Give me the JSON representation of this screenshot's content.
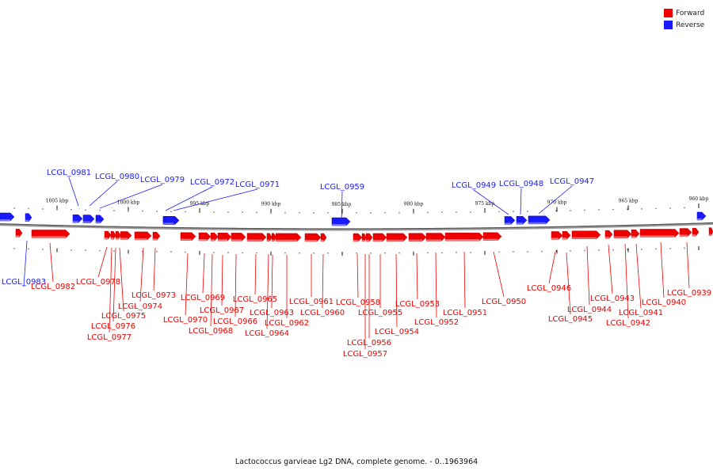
{
  "legend": {
    "forward_label": "Forward",
    "reverse_label": "Reverse",
    "forward_color": "#ee0000",
    "reverse_color": "#1a1aff"
  },
  "caption": "Lactococcus garvieae Lg2 DNA, complete genome. - 0..1963964",
  "scale": {
    "unit": "kbp",
    "ticks": [
      "1005 kbp",
      "1000 kbp",
      "995 kbp",
      "990 kbp",
      "985 kbp",
      "980 kbp",
      "975 kbp",
      "970 kbp",
      "965 kbp",
      "960 kbp"
    ]
  },
  "genes": {
    "reverse": [
      "LCGL_0983",
      "LCGL_0981",
      "LCGL_0980",
      "LCGL_0979",
      "LCGL_0972",
      "LCGL_0971",
      "LCGL_0959",
      "LCGL_0949",
      "LCGL_0948",
      "LCGL_0947"
    ],
    "forward": [
      "LCGL_0982",
      "LCGL_0978",
      "LCGL_0977",
      "LCGL_0976",
      "LCGL_0975",
      "LCGL_0974",
      "LCGL_0973",
      "LCGL_0970",
      "LCGL_0969",
      "LCGL_0968",
      "LCGL_0967",
      "LCGL_0966",
      "LCGL_0965",
      "LCGL_0964",
      "LCGL_0963",
      "LCGL_0962",
      "LCGL_0961",
      "LCGL_0960",
      "LCGL_0958",
      "LCGL_0957",
      "LCGL_0956",
      "LCGL_0955",
      "LCGL_0954",
      "LCGL_0953",
      "LCGL_0952",
      "LCGL_0951",
      "LCGL_0950",
      "LCGL_0946",
      "LCGL_0945",
      "LCGL_0944",
      "LCGL_0943",
      "LCGL_0942",
      "LCGL_0941",
      "LCGL_0940",
      "LCGL_0939"
    ]
  }
}
